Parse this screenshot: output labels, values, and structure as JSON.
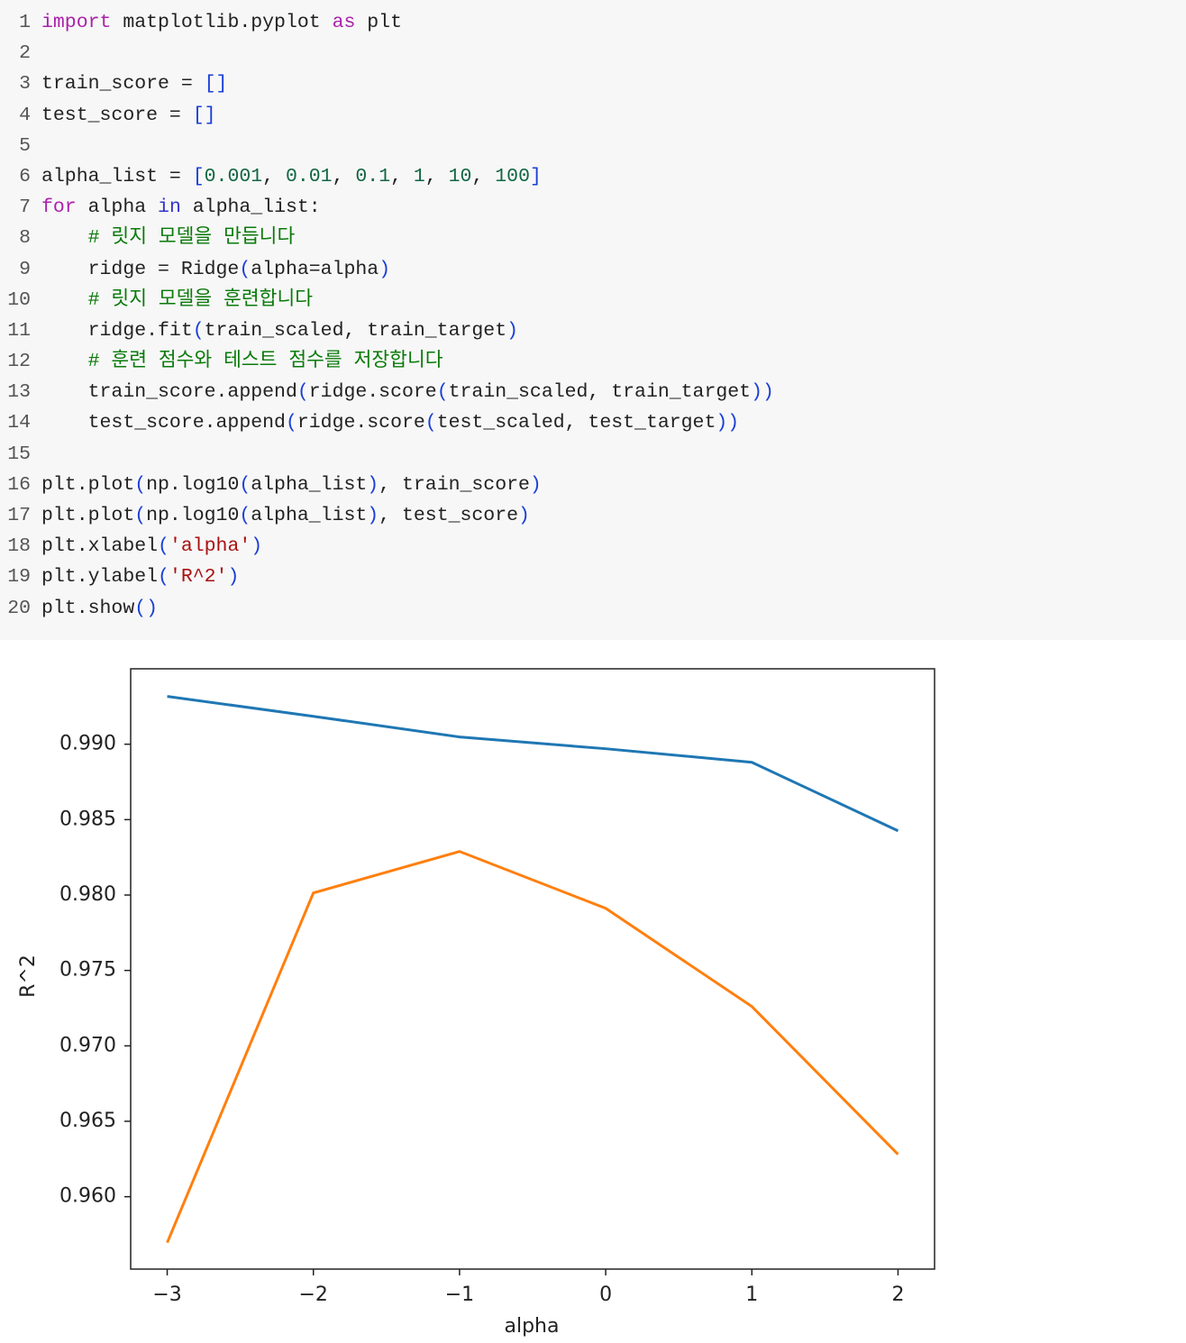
{
  "code": {
    "lines": [
      {
        "number": 1,
        "tokens": [
          {
            "text": "import",
            "kind": "kw"
          },
          {
            "text": " matplotlib.pyplot ",
            "kind": "n"
          },
          {
            "text": "as",
            "kind": "kw"
          },
          {
            "text": " plt",
            "kind": "n"
          }
        ]
      },
      {
        "number": 2,
        "tokens": []
      },
      {
        "number": 3,
        "tokens": [
          {
            "text": "train_score = ",
            "kind": "n"
          },
          {
            "text": "[]",
            "kind": "br"
          }
        ]
      },
      {
        "number": 4,
        "tokens": [
          {
            "text": "test_score = ",
            "kind": "n"
          },
          {
            "text": "[]",
            "kind": "br"
          }
        ]
      },
      {
        "number": 5,
        "tokens": []
      },
      {
        "number": 6,
        "tokens": [
          {
            "text": "alpha_list = ",
            "kind": "n"
          },
          {
            "text": "[",
            "kind": "br"
          },
          {
            "text": "0.001",
            "kind": "num"
          },
          {
            "text": ", ",
            "kind": "n"
          },
          {
            "text": "0.01",
            "kind": "num"
          },
          {
            "text": ", ",
            "kind": "n"
          },
          {
            "text": "0.1",
            "kind": "num"
          },
          {
            "text": ", ",
            "kind": "n"
          },
          {
            "text": "1",
            "kind": "num"
          },
          {
            "text": ", ",
            "kind": "n"
          },
          {
            "text": "10",
            "kind": "num"
          },
          {
            "text": ", ",
            "kind": "n"
          },
          {
            "text": "100",
            "kind": "num"
          },
          {
            "text": "]",
            "kind": "br"
          }
        ]
      },
      {
        "number": 7,
        "tokens": [
          {
            "text": "for",
            "kind": "kw"
          },
          {
            "text": " alpha ",
            "kind": "n"
          },
          {
            "text": "in",
            "kind": "kw2"
          },
          {
            "text": " alpha_list:",
            "kind": "n"
          }
        ]
      },
      {
        "number": 8,
        "tokens": [
          {
            "text": "    # 릿지 모델을 만듭니다",
            "kind": "cm"
          }
        ]
      },
      {
        "number": 9,
        "tokens": [
          {
            "text": "    ridge = Ridge",
            "kind": "n"
          },
          {
            "text": "(",
            "kind": "br"
          },
          {
            "text": "alpha=alpha",
            "kind": "n"
          },
          {
            "text": ")",
            "kind": "br"
          }
        ]
      },
      {
        "number": 10,
        "tokens": [
          {
            "text": "    # 릿지 모델을 훈련합니다",
            "kind": "cm"
          }
        ]
      },
      {
        "number": 11,
        "tokens": [
          {
            "text": "    ridge.fit",
            "kind": "n"
          },
          {
            "text": "(",
            "kind": "br"
          },
          {
            "text": "train_scaled, train_target",
            "kind": "n"
          },
          {
            "text": ")",
            "kind": "br"
          }
        ]
      },
      {
        "number": 12,
        "tokens": [
          {
            "text": "    # 훈련 점수와 테스트 점수를 저장합니다",
            "kind": "cm"
          }
        ]
      },
      {
        "number": 13,
        "tokens": [
          {
            "text": "    train_score.append",
            "kind": "n"
          },
          {
            "text": "(",
            "kind": "br"
          },
          {
            "text": "ridge.score",
            "kind": "n"
          },
          {
            "text": "(",
            "kind": "br"
          },
          {
            "text": "train_scaled, train_target",
            "kind": "n"
          },
          {
            "text": "))",
            "kind": "br"
          }
        ]
      },
      {
        "number": 14,
        "tokens": [
          {
            "text": "    test_score.append",
            "kind": "n"
          },
          {
            "text": "(",
            "kind": "br"
          },
          {
            "text": "ridge.score",
            "kind": "n"
          },
          {
            "text": "(",
            "kind": "br"
          },
          {
            "text": "test_scaled, test_target",
            "kind": "n"
          },
          {
            "text": "))",
            "kind": "br"
          }
        ]
      },
      {
        "number": 15,
        "tokens": []
      },
      {
        "number": 16,
        "tokens": [
          {
            "text": "plt.plot",
            "kind": "n"
          },
          {
            "text": "(",
            "kind": "br"
          },
          {
            "text": "np.log10",
            "kind": "n"
          },
          {
            "text": "(",
            "kind": "br"
          },
          {
            "text": "alpha_list",
            "kind": "n"
          },
          {
            "text": ")",
            "kind": "br"
          },
          {
            "text": ", train_score",
            "kind": "n"
          },
          {
            "text": ")",
            "kind": "br"
          }
        ]
      },
      {
        "number": 17,
        "tokens": [
          {
            "text": "plt.plot",
            "kind": "n"
          },
          {
            "text": "(",
            "kind": "br"
          },
          {
            "text": "np.log10",
            "kind": "n"
          },
          {
            "text": "(",
            "kind": "br"
          },
          {
            "text": "alpha_list",
            "kind": "n"
          },
          {
            "text": ")",
            "kind": "br"
          },
          {
            "text": ", test_score",
            "kind": "n"
          },
          {
            "text": ")",
            "kind": "br"
          }
        ]
      },
      {
        "number": 18,
        "tokens": [
          {
            "text": "plt.xlabel",
            "kind": "n"
          },
          {
            "text": "(",
            "kind": "br"
          },
          {
            "text": "'alpha'",
            "kind": "str"
          },
          {
            "text": ")",
            "kind": "br"
          }
        ]
      },
      {
        "number": 19,
        "tokens": [
          {
            "text": "plt.ylabel",
            "kind": "n"
          },
          {
            "text": "(",
            "kind": "br"
          },
          {
            "text": "'R^2'",
            "kind": "str"
          },
          {
            "text": ")",
            "kind": "br"
          }
        ]
      },
      {
        "number": 20,
        "tokens": [
          {
            "text": "plt.show",
            "kind": "n"
          },
          {
            "text": "()",
            "kind": "br"
          }
        ]
      }
    ]
  },
  "chart_data": {
    "type": "line",
    "xlabel": "alpha",
    "ylabel": "R^2",
    "x": [
      -3,
      -2,
      -1,
      0,
      1,
      2
    ],
    "series": [
      {
        "color": "#1f77b4",
        "values": [
          0.99317,
          0.99185,
          0.99048,
          0.9897,
          0.9888,
          0.98426
        ]
      },
      {
        "color": "#ff7f0e",
        "values": [
          0.95695,
          0.98014,
          0.98289,
          0.97912,
          0.97261,
          0.96281
        ]
      }
    ],
    "xlim": [
      -3.25,
      2.25
    ],
    "xticks": [
      {
        "value": -3,
        "label": "−3"
      },
      {
        "value": -2,
        "label": "−2"
      },
      {
        "value": -1,
        "label": "−1"
      },
      0,
      1,
      2
    ],
    "ylim": [
      0.9552,
      0.995
    ],
    "yticks": [
      {
        "value": 0.96,
        "label": "0.960"
      },
      0.965,
      {
        "value": 0.97,
        "label": "0.970"
      },
      0.975,
      {
        "value": 0.98,
        "label": "0.980"
      },
      0.985,
      {
        "value": 0.99,
        "label": "0.990"
      }
    ],
    "grid": false
  }
}
